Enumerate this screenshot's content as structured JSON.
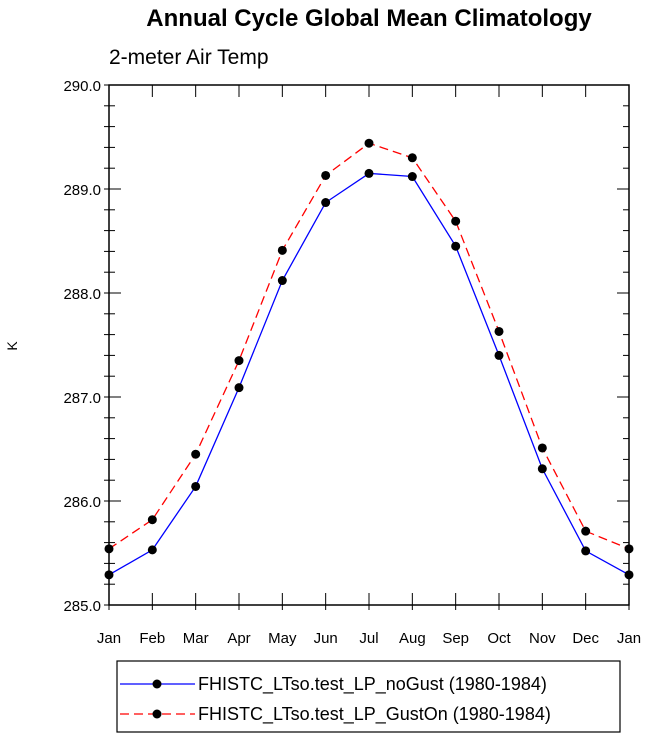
{
  "chart_data": {
    "type": "line",
    "title": "Annual Cycle Global Mean Climatology",
    "subtitle": "2-meter Air Temp",
    "xlabel": "",
    "ylabel": "K",
    "categories": [
      "Jan",
      "Feb",
      "Mar",
      "Apr",
      "May",
      "Jun",
      "Jul",
      "Aug",
      "Sep",
      "Oct",
      "Nov",
      "Dec",
      "Jan"
    ],
    "ylim": [
      285.0,
      290.0
    ],
    "yticks": [
      "285.0",
      "286.0",
      "287.0",
      "288.0",
      "289.0",
      "290.0"
    ],
    "grid": false,
    "legend_position": "bottom",
    "series": [
      {
        "name": "FHISTC_LTso.test_LP_noGust (1980-1984)",
        "color": "#0000ff",
        "dash": "solid",
        "values": [
          285.29,
          285.53,
          286.14,
          287.09,
          288.12,
          288.87,
          289.15,
          289.12,
          288.45,
          287.4,
          286.31,
          285.52,
          285.29
        ]
      },
      {
        "name": "FHISTC_LTso.test_LP_GustOn (1980-1984)",
        "color": "#ff0000",
        "dash": "dashed",
        "values": [
          285.54,
          285.82,
          286.45,
          287.35,
          288.41,
          289.13,
          289.44,
          289.3,
          288.69,
          287.63,
          286.51,
          285.71,
          285.54
        ]
      }
    ]
  }
}
